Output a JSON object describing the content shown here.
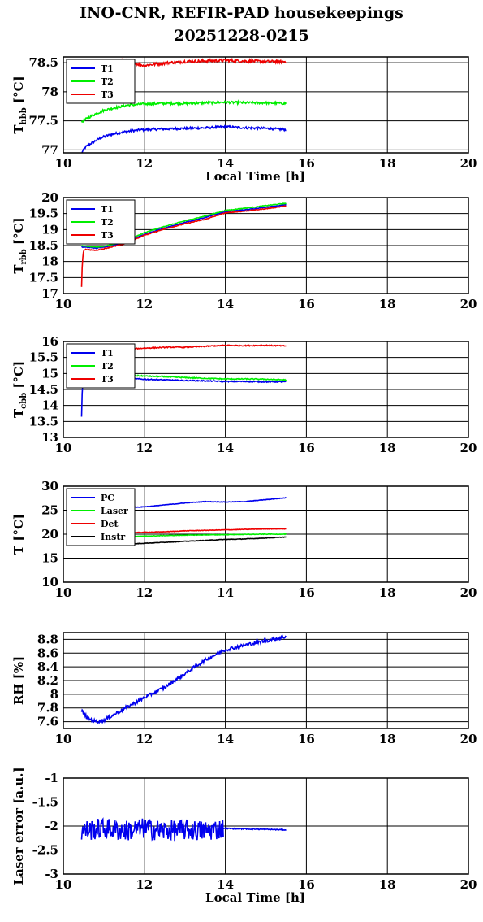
{
  "title": {
    "line1": "INO-CNR, REFIR-PAD housekeepings",
    "line2": "20251228-0215"
  },
  "colors": {
    "blue": "#0000ee",
    "green": "#00ee00",
    "red": "#ee0000",
    "black": "#000000"
  },
  "chart_data": [
    {
      "type": "line",
      "ylabel": {
        "base": "T",
        "sub": "hbb",
        "unit": "[°C]"
      },
      "xlabel": "Local Time [h]",
      "xlim": [
        10,
        20
      ],
      "ylim": [
        76.95,
        78.6
      ],
      "yticks": [
        77,
        77.5,
        78,
        78.5
      ],
      "ytick_labels": [
        "77",
        "77.5",
        "78",
        "78.5"
      ],
      "xticks": [
        10,
        12,
        14,
        16,
        18,
        20
      ],
      "legend": "top-left",
      "series": [
        {
          "name": "T1",
          "color": "#0000ee",
          "noise": 0.02,
          "x": [
            10.45,
            10.55,
            10.7,
            10.9,
            11.1,
            11.4,
            11.7,
            12,
            12.5,
            13,
            13.5,
            14,
            14.5,
            15,
            15.5
          ],
          "y": [
            76.95,
            77.05,
            77.12,
            77.2,
            77.25,
            77.3,
            77.33,
            77.35,
            77.36,
            77.37,
            77.38,
            77.4,
            77.38,
            77.37,
            77.35
          ]
        },
        {
          "name": "T2",
          "color": "#00ee00",
          "noise": 0.02,
          "x": [
            10.45,
            10.6,
            10.8,
            11,
            11.3,
            11.6,
            12,
            12.5,
            13,
            13.5,
            14,
            14.5,
            15,
            15.5
          ],
          "y": [
            77.48,
            77.55,
            77.62,
            77.68,
            77.73,
            77.77,
            77.79,
            77.8,
            77.8,
            77.81,
            77.82,
            77.81,
            77.81,
            77.8
          ]
        },
        {
          "name": "T3",
          "color": "#ee0000",
          "noise": 0.025,
          "x": [
            11.4,
            11.7,
            12,
            12.3,
            12.6,
            13,
            13.5,
            14,
            14.5,
            15,
            15.5
          ],
          "y": [
            78.55,
            78.5,
            78.45,
            78.48,
            78.5,
            78.52,
            78.53,
            78.54,
            78.53,
            78.52,
            78.52
          ]
        }
      ]
    },
    {
      "type": "line",
      "ylabel": {
        "base": "T",
        "sub": "rbb",
        "unit": "[°C]"
      },
      "xlabel": "",
      "xlim": [
        10,
        20
      ],
      "ylim": [
        17,
        20
      ],
      "yticks": [
        17,
        17.5,
        18,
        18.5,
        19,
        19.5,
        20
      ],
      "ytick_labels": [
        "17",
        "17.5",
        "18",
        "18.5",
        "19",
        "19.5",
        "20"
      ],
      "xticks": [
        10,
        12,
        14,
        16,
        18,
        20
      ],
      "legend": "top-left",
      "series": [
        {
          "name": "T1",
          "color": "#0000ee",
          "noise": 0.01,
          "x": [
            10.45,
            10.55,
            10.8,
            11,
            11.5,
            12,
            12.5,
            13,
            13.5,
            14,
            14.5,
            15,
            15.5
          ],
          "y": [
            18.45,
            18.45,
            18.42,
            18.45,
            18.58,
            18.85,
            19.05,
            19.22,
            19.38,
            19.56,
            19.62,
            19.7,
            19.78
          ]
        },
        {
          "name": "T2",
          "color": "#00ee00",
          "noise": 0.01,
          "x": [
            10.45,
            10.55,
            10.8,
            11,
            11.5,
            12,
            12.5,
            13,
            13.5,
            14,
            14.5,
            15,
            15.5
          ],
          "y": [
            18.5,
            18.48,
            18.45,
            18.48,
            18.62,
            18.9,
            19.1,
            19.27,
            19.42,
            19.6,
            19.67,
            19.75,
            19.82
          ]
        },
        {
          "name": "T3",
          "color": "#ee0000",
          "noise": 0.01,
          "x": [
            10.45,
            10.47,
            10.5,
            10.55,
            10.8,
            11,
            11.5,
            12,
            12.5,
            13,
            13.5,
            14,
            14.5,
            15,
            15.5
          ],
          "y": [
            17.2,
            18,
            18.35,
            18.38,
            18.35,
            18.4,
            18.55,
            18.82,
            19.02,
            19.18,
            19.32,
            19.52,
            19.58,
            19.65,
            19.74
          ]
        }
      ]
    },
    {
      "type": "line",
      "ylabel": {
        "base": "T",
        "sub": "cbb",
        "unit": "[°C]"
      },
      "xlabel": "",
      "xlim": [
        10,
        20
      ],
      "ylim": [
        13,
        16
      ],
      "yticks": [
        13,
        13.5,
        14,
        14.5,
        15,
        15.5,
        16
      ],
      "ytick_labels": [
        "13",
        "13.5",
        "14",
        "14.5",
        "15",
        "15.5",
        "16"
      ],
      "xticks": [
        10,
        12,
        14,
        16,
        18,
        20
      ],
      "legend": "top-left",
      "series": [
        {
          "name": "T1",
          "color": "#0000ee",
          "noise": 0.015,
          "x": [
            10.45,
            10.47,
            10.5,
            10.6,
            10.8,
            11,
            11.5,
            12,
            12.5,
            13,
            13.5,
            14,
            14.5,
            15,
            15.5
          ],
          "y": [
            13.65,
            14.6,
            14.85,
            14.88,
            14.85,
            14.85,
            14.85,
            14.82,
            14.8,
            14.78,
            14.77,
            14.75,
            14.75,
            14.74,
            14.74
          ]
        },
        {
          "name": "T2",
          "color": "#00ee00",
          "noise": 0.015,
          "x": [
            10.6,
            11,
            11.5,
            12,
            12.5,
            13,
            13.5,
            14,
            14.5,
            15,
            15.5
          ],
          "y": [
            14.93,
            14.95,
            14.95,
            14.92,
            14.9,
            14.87,
            14.85,
            14.83,
            14.83,
            14.82,
            14.8
          ]
        },
        {
          "name": "T3",
          "color": "#ee0000",
          "noise": 0.015,
          "x": [
            11.4,
            11.8,
            12.2,
            12.6,
            13,
            13.5,
            14,
            14.5,
            15,
            15.5
          ],
          "y": [
            15.8,
            15.78,
            15.8,
            15.82,
            15.82,
            15.85,
            15.88,
            15.87,
            15.88,
            15.86
          ]
        }
      ]
    },
    {
      "type": "line",
      "ylabel": {
        "base": "T",
        "sub": "",
        "unit": "[°C]"
      },
      "xlabel": "",
      "xlim": [
        10,
        20
      ],
      "ylim": [
        10,
        30
      ],
      "yticks": [
        10,
        15,
        20,
        25,
        30
      ],
      "ytick_labels": [
        "10",
        "15",
        "20",
        "25",
        "30"
      ],
      "xticks": [
        10,
        12,
        14,
        16,
        18,
        20
      ],
      "legend": "top-left",
      "series": [
        {
          "name": "PC",
          "color": "#0000ee",
          "noise": 0.05,
          "x": [
            11.4,
            12,
            12.5,
            13,
            13.5,
            14,
            14.5,
            15,
            15.5
          ],
          "y": [
            25.5,
            25.7,
            26.1,
            26.5,
            26.8,
            26.7,
            26.8,
            27.2,
            27.6
          ]
        },
        {
          "name": "Laser",
          "color": "#00ee00",
          "noise": 0.05,
          "x": [
            11.4,
            12,
            12.5,
            13,
            13.5,
            14,
            14.5,
            15,
            15.5
          ],
          "y": [
            19.5,
            19.6,
            19.7,
            19.8,
            19.85,
            19.9,
            19.95,
            20,
            20
          ]
        },
        {
          "name": "Det",
          "color": "#ee0000",
          "noise": 0.05,
          "x": [
            11.4,
            12,
            12.5,
            13,
            13.5,
            14,
            14.5,
            15,
            15.5
          ],
          "y": [
            20.2,
            20.4,
            20.5,
            20.7,
            20.8,
            20.9,
            21,
            21.1,
            21.1
          ]
        },
        {
          "name": "Instr",
          "color": "#000000",
          "noise": 0.05,
          "x": [
            10.45,
            11,
            11.5,
            12,
            12.5,
            13,
            13.5,
            14,
            14.5,
            15,
            15.5
          ],
          "y": [
            17.8,
            17.8,
            17.9,
            18.1,
            18.3,
            18.5,
            18.7,
            18.9,
            19,
            19.2,
            19.4
          ]
        }
      ]
    },
    {
      "type": "line",
      "ylabel": {
        "base": "RH",
        "sub": "",
        "unit": "[%]"
      },
      "xlabel": "",
      "xlim": [
        10,
        20
      ],
      "ylim": [
        7.5,
        8.9
      ],
      "yticks": [
        7.6,
        7.8,
        8,
        8.2,
        8.4,
        8.6,
        8.8
      ],
      "ytick_labels": [
        "7.6",
        "7.8",
        "8",
        "8.2",
        "8.4",
        "8.6",
        "8.8"
      ],
      "xticks": [
        10,
        12,
        14,
        16,
        18,
        20
      ],
      "legend": "none",
      "series": [
        {
          "name": "",
          "color": "#0000ee",
          "noise": 0.025,
          "x": [
            10.45,
            10.6,
            10.8,
            11,
            11.3,
            11.6,
            12,
            12.5,
            13,
            13.5,
            14,
            14.5,
            15,
            15.5
          ],
          "y": [
            7.76,
            7.65,
            7.6,
            7.62,
            7.72,
            7.82,
            7.95,
            8.1,
            8.3,
            8.5,
            8.65,
            8.72,
            8.78,
            8.84
          ]
        }
      ]
    },
    {
      "type": "line",
      "ylabel": {
        "base": "Laser error [a.u.]",
        "sub": "",
        "unit": ""
      },
      "xlabel": "Local Time [h]",
      "xlim": [
        10,
        20
      ],
      "ylim": [
        -3,
        -1
      ],
      "yticks": [
        -3,
        -2.5,
        -2,
        -1.5,
        -1
      ],
      "ytick_labels": [
        "-3",
        "-2.5",
        "-2",
        "-1.5",
        "-1"
      ],
      "xticks": [
        10,
        12,
        14,
        16,
        18,
        20
      ],
      "legend": "none",
      "series": [
        {
          "name": "",
          "color": "#0000ee",
          "noise": 0.22,
          "x": [
            10.45,
            11,
            11.5,
            12,
            12.5,
            13,
            13.5,
            13.95
          ],
          "y": [
            -2.1,
            -2.05,
            -2.1,
            -2.05,
            -2.1,
            -2.08,
            -2.1,
            -2.05
          ]
        },
        {
          "name": "",
          "color": "#0000ee",
          "noise": 0.01,
          "x": [
            13.95,
            14.5,
            15,
            15.5
          ],
          "y": [
            -2.05,
            -2.06,
            -2.07,
            -2.08
          ]
        }
      ]
    }
  ]
}
